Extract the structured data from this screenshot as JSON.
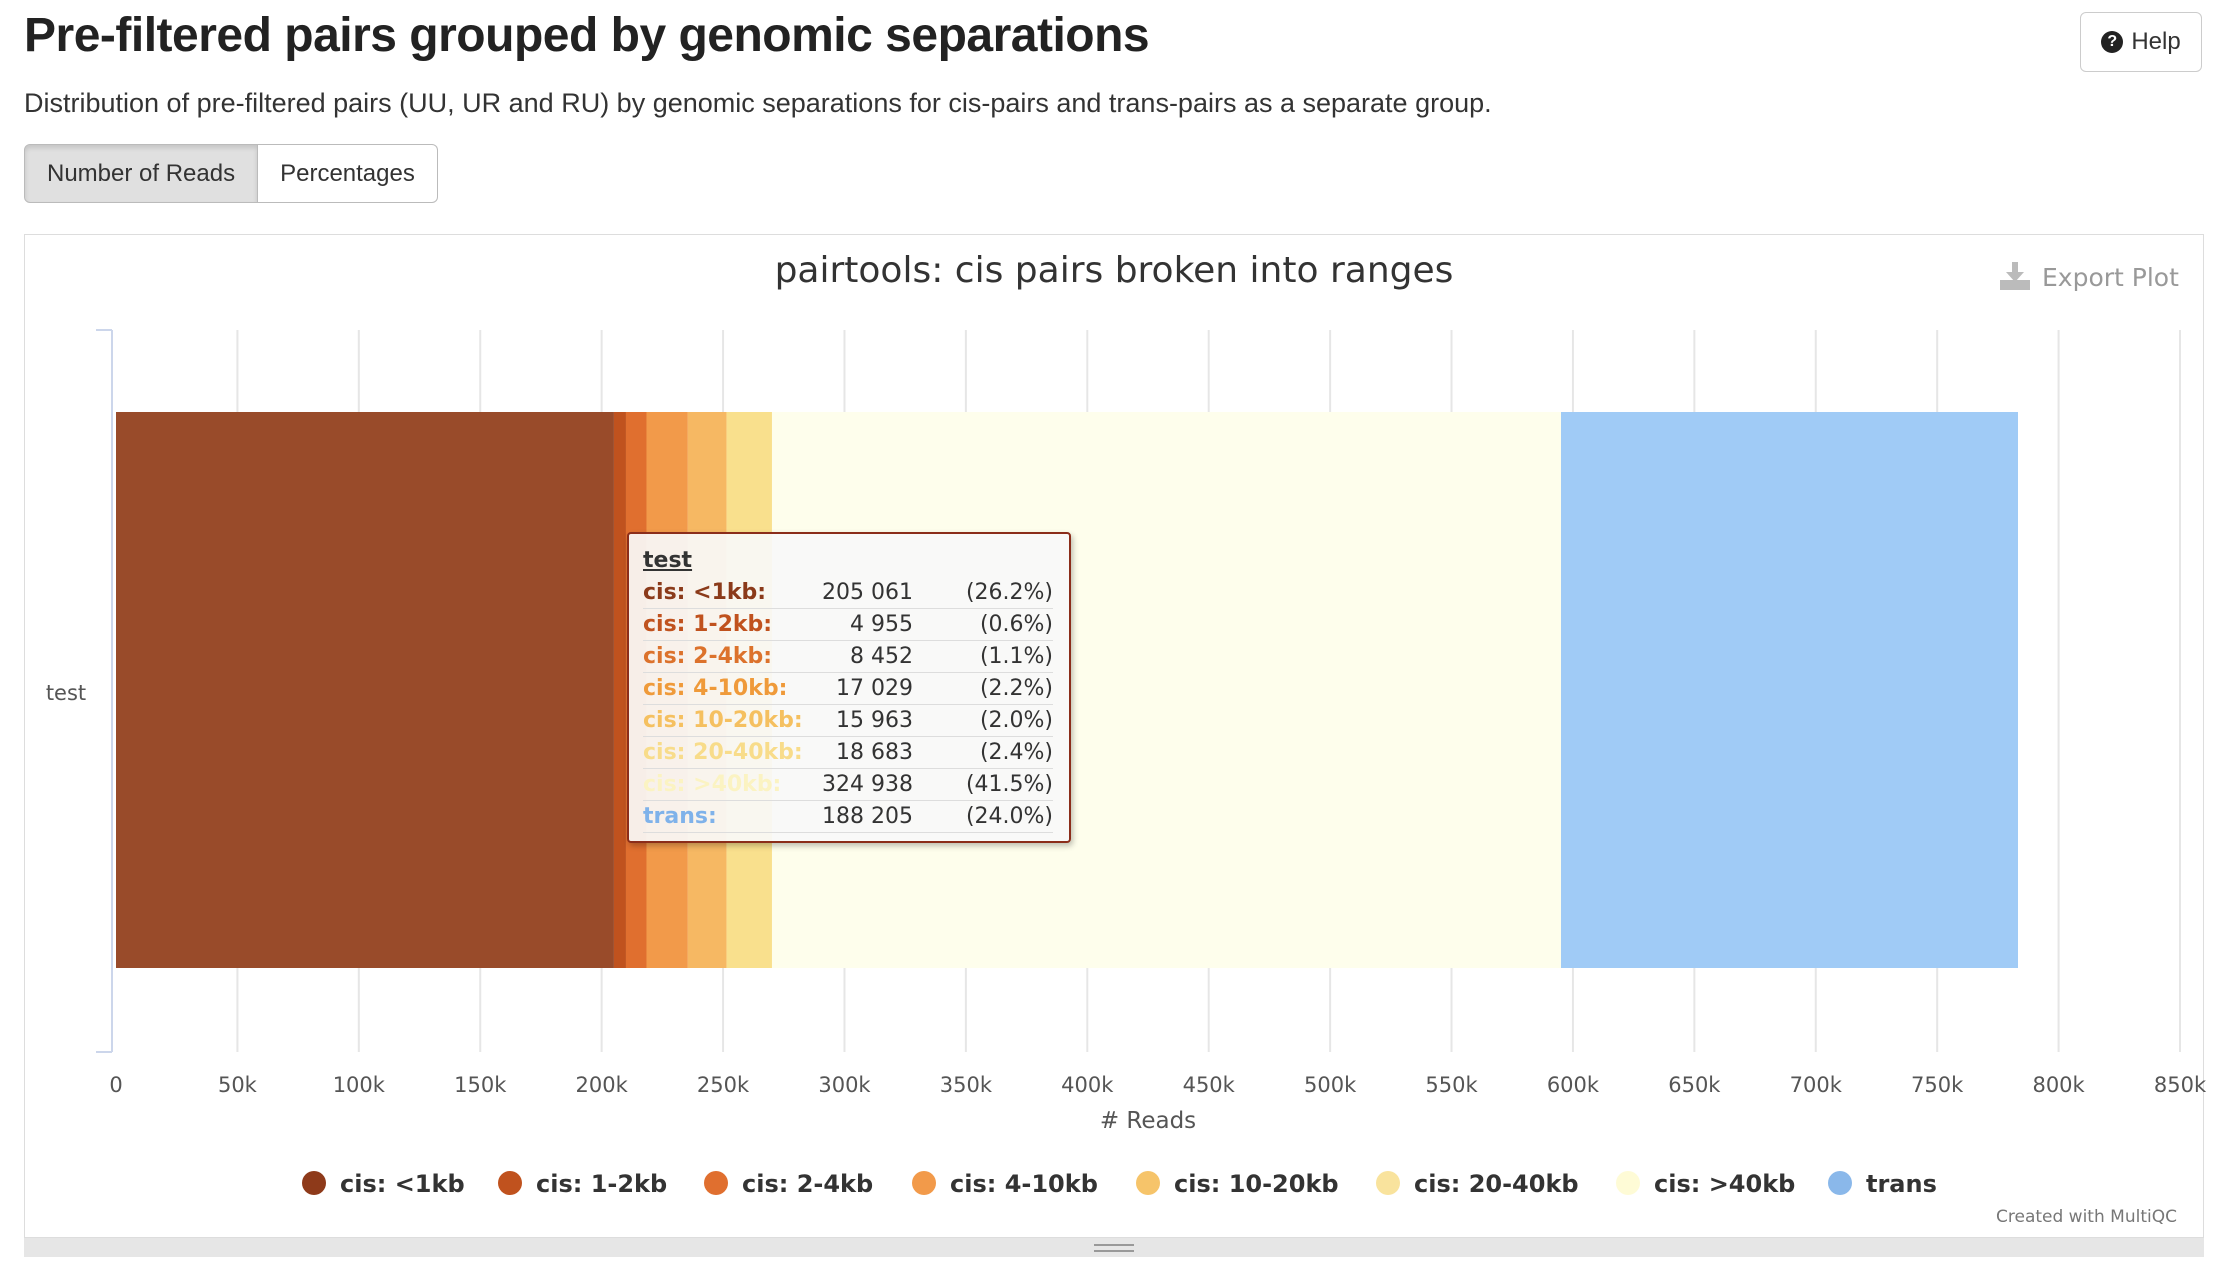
{
  "header": {
    "title": "Pre-filtered pairs grouped by genomic separations",
    "description": "Distribution of pre-filtered pairs (UU, UR and RU) by genomic separations for cis-pairs and trans-pairs as a separate group.",
    "help_label": "Help"
  },
  "toggle": {
    "reads_label": "Number of Reads",
    "percent_label": "Percentages"
  },
  "plot": {
    "export_label": "Export Plot",
    "credit": "Created with MultiQC"
  },
  "tooltip": {
    "sample": "test",
    "rows": [
      {
        "label": "cis: <1kb:",
        "value": "205 061",
        "pct": "(26.2%)",
        "color": "#8b3a1a"
      },
      {
        "label": "cis: 1-2kb:",
        "value": "4 955",
        "pct": "(0.6%)",
        "color": "#c0521e"
      },
      {
        "label": "cis: 2-4kb:",
        "value": "8 452",
        "pct": "(1.1%)",
        "color": "#dc722c"
      },
      {
        "label": "cis: 4-10kb:",
        "value": "17 029",
        "pct": "(2.2%)",
        "color": "#ef9a3a"
      },
      {
        "label": "cis: 10-20kb:",
        "value": "15 963",
        "pct": "(2.0%)",
        "color": "#f5c060"
      },
      {
        "label": "cis: 20-40kb:",
        "value": "18 683",
        "pct": "(2.4%)",
        "color": "#f8dc8a"
      },
      {
        "label": "cis: >40kb:",
        "value": "324 938",
        "pct": "(41.5%)",
        "color": "#fbf3c2"
      },
      {
        "label": "trans:",
        "value": "188 205",
        "pct": "(24.0%)",
        "color": "#7fb2ea"
      }
    ]
  },
  "chart_data": {
    "type": "bar",
    "orientation": "horizontal",
    "stacked": true,
    "title": "pairtools: cis pairs broken into ranges",
    "xlabel": "# Reads",
    "ylabel": "",
    "categories": [
      "test"
    ],
    "xlim": [
      0,
      850000
    ],
    "xticks": [
      0,
      50000,
      100000,
      150000,
      200000,
      250000,
      300000,
      350000,
      400000,
      450000,
      500000,
      550000,
      600000,
      650000,
      700000,
      750000,
      800000,
      850000
    ],
    "xtick_labels": [
      "0",
      "50k",
      "100k",
      "150k",
      "200k",
      "250k",
      "300k",
      "350k",
      "400k",
      "450k",
      "500k",
      "550k",
      "600k",
      "650k",
      "700k",
      "750k",
      "800k",
      "850k"
    ],
    "legend_position": "bottom",
    "series": [
      {
        "name": "cis: <1kb",
        "values": [
          205061
        ],
        "color": "#994b2a"
      },
      {
        "name": "cis: 1-2kb",
        "values": [
          4955
        ],
        "color": "#c0521e"
      },
      {
        "name": "cis: 2-4kb",
        "values": [
          8452
        ],
        "color": "#e06f2f"
      },
      {
        "name": "cis: 4-10kb",
        "values": [
          17029
        ],
        "color": "#f29a4a"
      },
      {
        "name": "cis: 10-20kb",
        "values": [
          15963
        ],
        "color": "#f6b863"
      },
      {
        "name": "cis: 20-40kb",
        "values": [
          18683
        ],
        "color": "#f9e08d"
      },
      {
        "name": "cis: >40kb",
        "values": [
          324938
        ],
        "color": "#fefeec"
      },
      {
        "name": "trans",
        "values": [
          188205
        ],
        "color": "#a0cbf6"
      }
    ],
    "legend_dot_colors": [
      "#8e3a1a",
      "#c0521e",
      "#e06f2f",
      "#f29a4a",
      "#f6c46a",
      "#f9e39d",
      "#fefbd6",
      "#8ab8ea"
    ]
  }
}
